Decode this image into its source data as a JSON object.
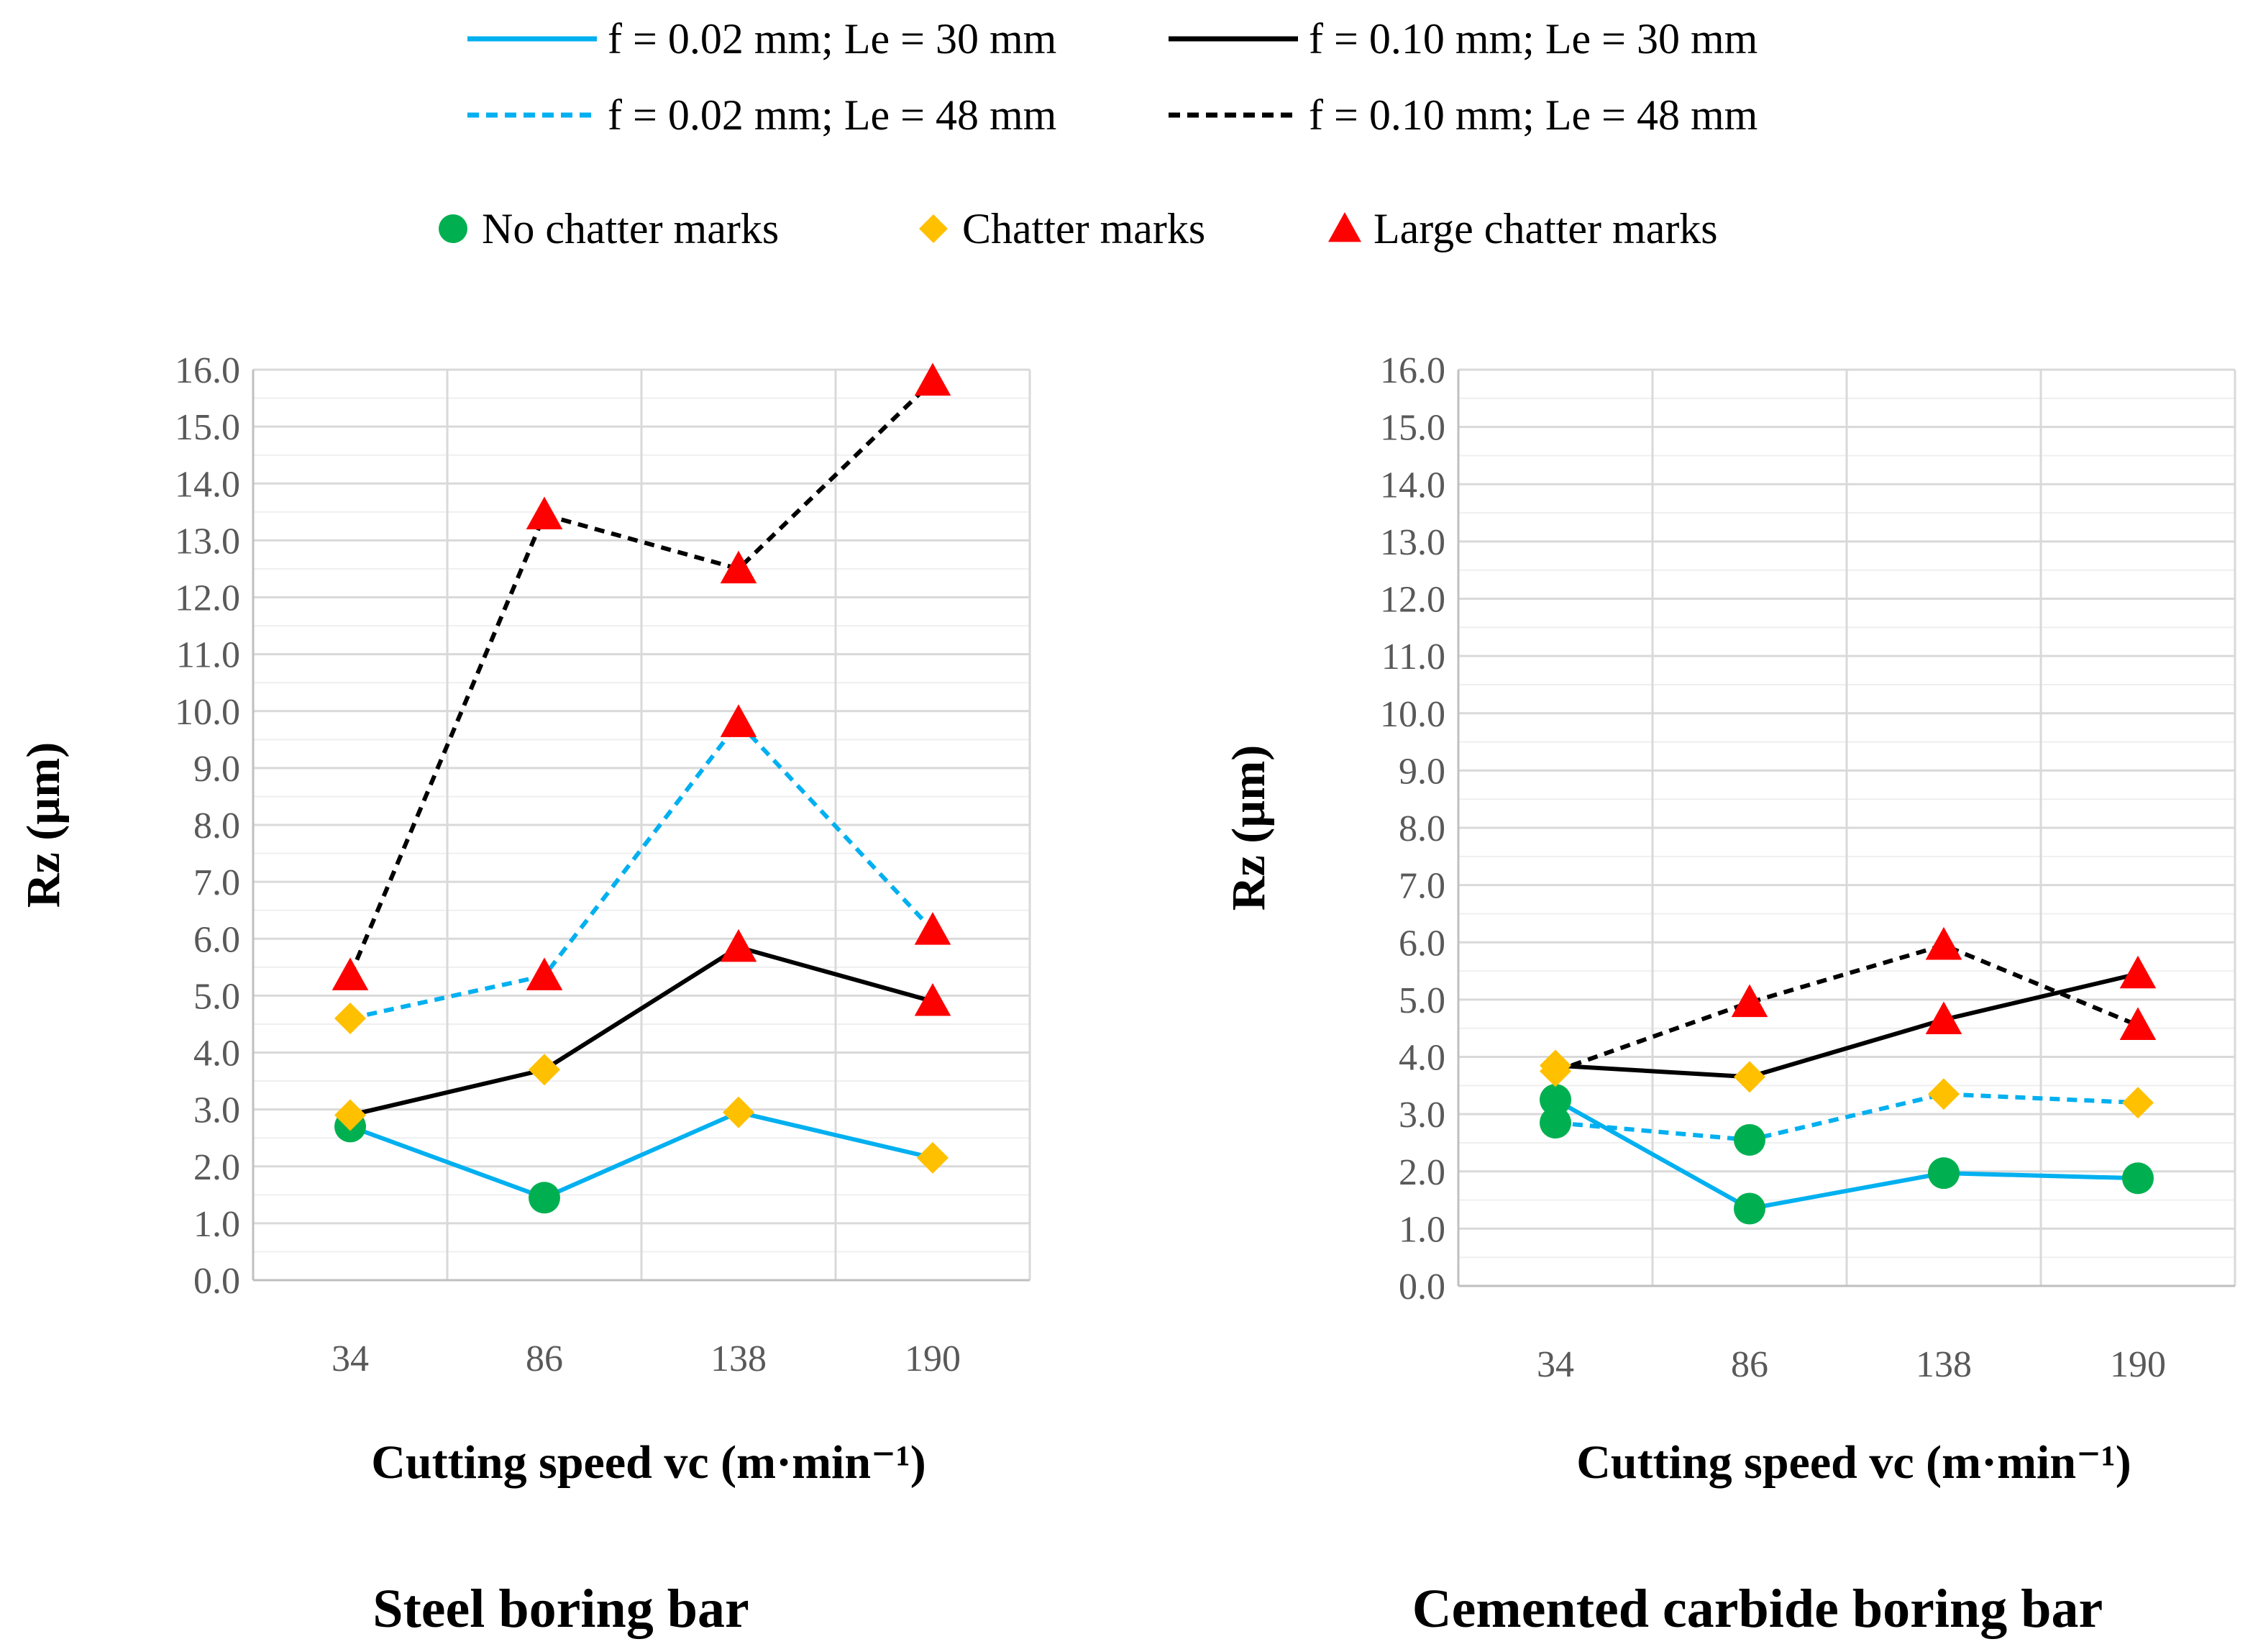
{
  "legend": {
    "lines": [
      {
        "name": "f = 0.02 mm; Le = 30 mm",
        "color": "#00B0F0",
        "dash": "solid"
      },
      {
        "name": "f = 0.10 mm; Le = 30 mm",
        "color": "#000000",
        "dash": "solid"
      },
      {
        "name": "f = 0.02 mm; Le = 48 mm",
        "color": "#00B0F0",
        "dash": "dashed"
      },
      {
        "name": "f = 0.10 mm; Le = 48 mm",
        "color": "#000000",
        "dash": "dashed"
      }
    ],
    "markers": [
      {
        "name": "No chatter marks",
        "shape": "circle",
        "color": "#00B050"
      },
      {
        "name": "Chatter marks",
        "shape": "diamond",
        "color": "#FFC000"
      },
      {
        "name": "Large chatter marks",
        "shape": "triangle",
        "color": "#FF0000"
      }
    ]
  },
  "chart_data": [
    {
      "type": "line",
      "title": "Steel boring bar",
      "xlabel": "Cutting speed vc (m·min⁻¹)",
      "ylabel": "Rz (µm)",
      "categories": [
        "34",
        "86",
        "138",
        "190"
      ],
      "ylim": [
        0,
        16
      ],
      "y_ticks": [
        "0.0",
        "1.0",
        "2.0",
        "3.0",
        "4.0",
        "5.0",
        "6.0",
        "7.0",
        "8.0",
        "9.0",
        "10.0",
        "11.0",
        "12.0",
        "13.0",
        "14.0",
        "15.0",
        "16.0"
      ],
      "grid": true,
      "series": [
        {
          "name": "f = 0.02 mm; Le = 30 mm",
          "values": [
            2.7,
            1.45,
            2.95,
            2.15
          ],
          "markers": [
            "circle",
            "circle",
            "diamond",
            "diamond"
          ]
        },
        {
          "name": "f = 0.10 mm; Le = 30 mm",
          "values": [
            2.9,
            3.7,
            5.85,
            4.9
          ],
          "markers": [
            "diamond",
            "diamond",
            "triangle",
            "triangle"
          ]
        },
        {
          "name": "f = 0.02 mm; Le = 48 mm",
          "values": [
            4.6,
            5.35,
            9.8,
            6.15
          ],
          "markers": [
            "diamond",
            "triangle",
            "triangle",
            "triangle"
          ]
        },
        {
          "name": "f = 0.10 mm; Le = 48 mm",
          "values": [
            5.35,
            13.45,
            12.5,
            15.8
          ],
          "markers": [
            "triangle",
            "triangle",
            "triangle",
            "triangle"
          ]
        }
      ]
    },
    {
      "type": "line",
      "title": "Cemented carbide boring bar",
      "xlabel": "Cutting speed vc (m·min⁻¹)",
      "ylabel": "Rz (µm)",
      "categories": [
        "34",
        "86",
        "138",
        "190"
      ],
      "ylim": [
        0,
        16
      ],
      "y_ticks": [
        "0.0",
        "1.0",
        "2.0",
        "3.0",
        "4.0",
        "5.0",
        "6.0",
        "7.0",
        "8.0",
        "9.0",
        "10.0",
        "11.0",
        "12.0",
        "13.0",
        "14.0",
        "15.0",
        "16.0"
      ],
      "grid": true,
      "series": [
        {
          "name": "f = 0.02 mm; Le = 30 mm",
          "values": [
            3.25,
            1.35,
            1.97,
            1.88
          ],
          "markers": [
            "circle",
            "circle",
            "circle",
            "circle"
          ]
        },
        {
          "name": "f = 0.10 mm; Le = 30 mm",
          "values": [
            3.85,
            3.65,
            4.65,
            5.45
          ],
          "markers": [
            "diamond",
            "diamond",
            "triangle",
            "triangle"
          ]
        },
        {
          "name": "f = 0.02 mm; Le = 48 mm",
          "values": [
            2.85,
            2.55,
            3.35,
            3.2
          ],
          "markers": [
            "circle",
            "circle",
            "diamond",
            "diamond"
          ]
        },
        {
          "name": "f = 0.10 mm; Le = 48 mm",
          "values": [
            3.75,
            4.95,
            5.95,
            4.55
          ],
          "markers": [
            "diamond",
            "triangle",
            "triangle",
            "triangle"
          ]
        }
      ]
    }
  ]
}
